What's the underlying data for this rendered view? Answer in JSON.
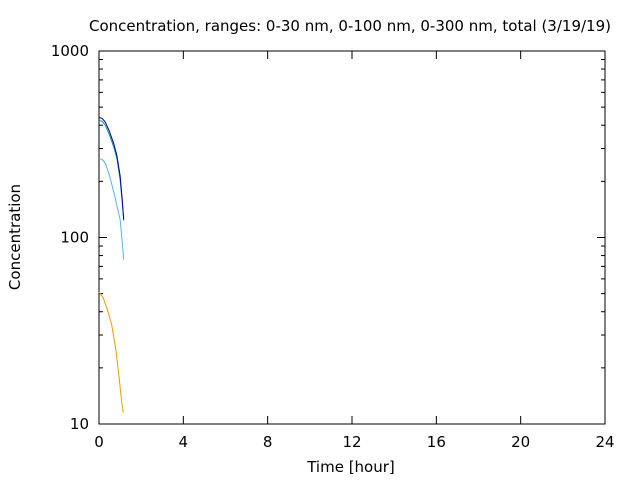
{
  "chart_data": {
    "type": "line",
    "title": "Concentration, ranges: 0-30 nm, 0-100 nm, 0-300 nm, total (3/19/19)",
    "xlabel": "Time [hour]",
    "ylabel": "Concentration",
    "xlim": [
      0,
      24
    ],
    "ylim": [
      10,
      1000
    ],
    "yscale": "log",
    "xticks": [
      0,
      4,
      8,
      12,
      16,
      20,
      24
    ],
    "yticks": [
      10,
      100,
      1000
    ],
    "xtick_labels": [
      "0",
      "4",
      "8",
      "12",
      "16",
      "20",
      "24"
    ],
    "ytick_labels": [
      "10",
      "100",
      "1000"
    ],
    "grid": false,
    "series": [
      {
        "color": "#e69f00",
        "x": [
          0,
          0.2,
          0.4,
          0.6,
          0.8,
          0.95,
          1.05,
          1.15
        ],
        "y": [
          51,
          47.5,
          41,
          34,
          25,
          18,
          14,
          11.5
        ]
      },
      {
        "color": "#56b4e9",
        "x": [
          0,
          0.15,
          0.3,
          0.5,
          0.7,
          0.85,
          1.0,
          1.1,
          1.17
        ],
        "y": [
          265,
          262,
          250,
          215,
          175,
          148,
          125,
          95,
          76
        ]
      },
      {
        "color": "#009e73",
        "x": [
          0,
          0.15,
          0.3,
          0.5,
          0.7,
          0.85,
          1.0,
          1.1,
          1.17
        ],
        "y": [
          425,
          420,
          400,
          355,
          305,
          265,
          205,
          155,
          123
        ]
      },
      {
        "color": "#0000aa",
        "x": [
          0,
          0.15,
          0.3,
          0.5,
          0.7,
          0.85,
          1.0,
          1.1,
          1.17
        ],
        "y": [
          440,
          435,
          415,
          370,
          318,
          275,
          215,
          160,
          125
        ]
      }
    ]
  }
}
